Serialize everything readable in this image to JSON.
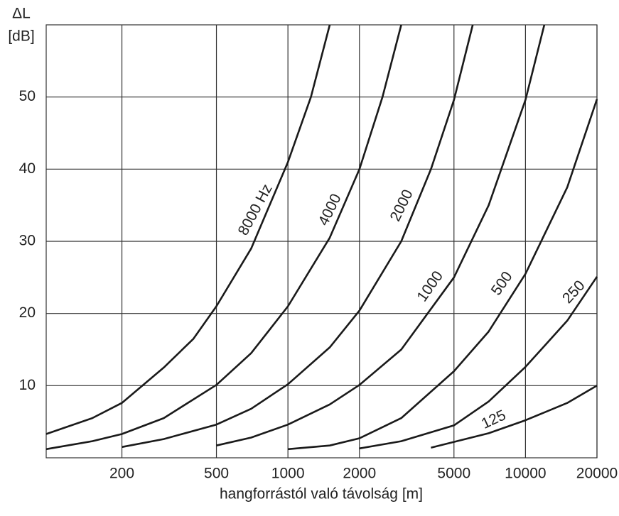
{
  "chart_data": {
    "type": "line",
    "y_label": "ΔL",
    "y_unit": "[dB]",
    "x_label": "hangforrástól való távolság [m]",
    "xscale": "log",
    "xlim": [
      96,
      20000
    ],
    "xticks": [
      200,
      500,
      1000,
      2000,
      5000,
      10000,
      20000
    ],
    "ylim": [
      0,
      60
    ],
    "yticks": [
      10,
      20,
      30,
      40,
      50
    ],
    "grid": true,
    "color": "#1a1a1a",
    "series": [
      {
        "name": "8000 Hz",
        "x": [
          96,
          150,
          200,
          300,
          400,
          500,
          700,
          1000,
          1250,
          1500
        ],
        "values": [
          3.3,
          5.5,
          7.6,
          12.5,
          16.5,
          21,
          29,
          41,
          50,
          60
        ]
      },
      {
        "name": "4000",
        "x": [
          96,
          150,
          200,
          300,
          500,
          700,
          1000,
          1500,
          2000,
          2500,
          3000
        ],
        "values": [
          1.2,
          2.3,
          3.3,
          5.5,
          10.1,
          14.5,
          21,
          30.5,
          40,
          50,
          60
        ]
      },
      {
        "name": "2000",
        "x": [
          200,
          300,
          500,
          700,
          1000,
          1500,
          2000,
          3000,
          4000,
          5000,
          6000
        ],
        "values": [
          1.5,
          2.6,
          4.6,
          6.8,
          10.2,
          15.3,
          20.4,
          30,
          40,
          49.6,
          60
        ]
      },
      {
        "name": "1000",
        "x": [
          500,
          700,
          1000,
          1500,
          2000,
          3000,
          5000,
          7000,
          10000,
          12000
        ],
        "values": [
          1.7,
          2.8,
          4.6,
          7.4,
          10.1,
          15,
          25,
          35,
          49.6,
          60
        ]
      },
      {
        "name": "500",
        "x": [
          1000,
          1500,
          2000,
          3000,
          5000,
          7000,
          10000,
          15000,
          20000
        ],
        "values": [
          1.2,
          1.7,
          2.7,
          5.5,
          12,
          17.5,
          25.5,
          37.5,
          49.7
        ]
      },
      {
        "name": "250",
        "x": [
          2000,
          3000,
          5000,
          7000,
          10000,
          15000,
          20000
        ],
        "values": [
          1.3,
          2.3,
          4.5,
          7.8,
          12.6,
          19,
          25.1
        ]
      },
      {
        "name": "125",
        "x": [
          4000,
          5000,
          7000,
          10000,
          15000,
          20000
        ],
        "values": [
          1.4,
          2.2,
          3.4,
          5.2,
          7.6,
          10
        ]
      }
    ]
  }
}
